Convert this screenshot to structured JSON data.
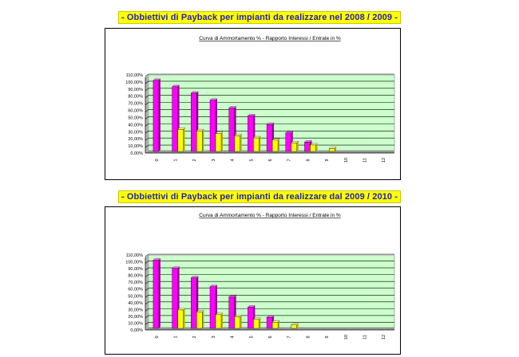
{
  "banners": [
    "- Obbiettivi di Payback per impianti da realizzare nel 2008 / 2009 -",
    "- Obbiettivi di Payback per impianti da realizzare dal 2009 / 2010 -"
  ],
  "colors": {
    "plot_bg": "#ccffcc",
    "series1": "#ff00ff",
    "series2": "#ffff00",
    "gridline": "#000000",
    "banner_bg": "#ffff00",
    "banner_text": "#1f1fb4"
  },
  "chart_data": [
    {
      "type": "bar",
      "title": "Curva di Ammortamento % - Rapporto Interessi / Entrate in %",
      "categories": [
        "0",
        "1",
        "2",
        "3",
        "4",
        "5",
        "6",
        "7",
        "8",
        "9",
        "10",
        "11",
        "12"
      ],
      "series": [
        {
          "values": [
            100,
            91,
            82,
            72,
            61,
            50,
            38,
            26,
            13,
            0,
            0,
            0,
            0
          ]
        },
        {
          "values": [
            0,
            31,
            29,
            25,
            22,
            19,
            16,
            12,
            9,
            4,
            0,
            0,
            0
          ]
        }
      ],
      "ylim": [
        0,
        110
      ],
      "yticks": [
        "0,00%",
        "10,00%",
        "20,00%",
        "30,00%",
        "40,00%",
        "50,00%",
        "60,00%",
        "70,00%",
        "80,00%",
        "90,00%",
        "100,00%",
        "110,00%"
      ],
      "grid": true
    },
    {
      "type": "bar",
      "title": "Curva di Ammortamento % - Rapporto Interessi / Entrate in %",
      "categories": [
        "0",
        "1",
        "2",
        "3",
        "4",
        "5",
        "6",
        "7",
        "8",
        "9",
        "10",
        "11",
        "12"
      ],
      "series": [
        {
          "values": [
            100,
            88,
            74,
            61,
            46,
            31,
            16,
            0,
            0,
            0,
            0,
            0,
            0
          ]
        },
        {
          "values": [
            0,
            27,
            24,
            20,
            17,
            13,
            9,
            5,
            0,
            0,
            0,
            0,
            0
          ]
        }
      ],
      "ylim": [
        0,
        110
      ],
      "yticks": [
        "0,00%",
        "10,00%",
        "20,00%",
        "30,00%",
        "40,00%",
        "50,00%",
        "60,00%",
        "70,00%",
        "80,00%",
        "90,00%",
        "100,00%",
        "110,00%"
      ],
      "grid": true
    }
  ]
}
